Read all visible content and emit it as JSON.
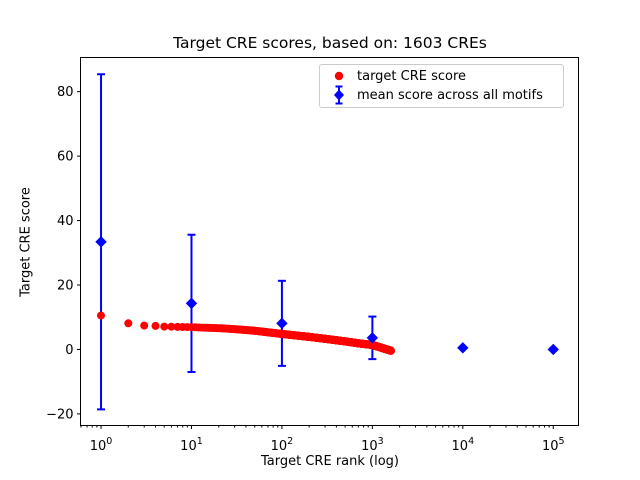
{
  "title": "Target CRE scores, based on: 1603 CREs",
  "axes": {
    "xlabel": "Target CRE rank (log)",
    "ylabel": "Target CRE score",
    "x_tick_base": "10",
    "x_tick_exponents": [
      "0",
      "1",
      "2",
      "3",
      "4",
      "5"
    ],
    "y_tick_labels": [
      "−20",
      "0",
      "20",
      "40",
      "60",
      "80"
    ]
  },
  "legend": {
    "items": [
      {
        "label": "target CRE score",
        "marker": "circle",
        "color": "#ff0000"
      },
      {
        "label": "mean score across all motifs",
        "marker": "diamond-errorbar",
        "color": "#0000ff"
      }
    ]
  },
  "chart_data": {
    "type": "scatter",
    "title": "Target CRE scores, based on: 1603 CREs",
    "xlabel": "Target CRE rank (log)",
    "ylabel": "Target CRE score",
    "x_scale": "log",
    "xlim_log": [
      -0.227,
      5.279
    ],
    "ylim": [
      -23.6,
      90.6
    ],
    "x_major_ticks": [
      1,
      10,
      100,
      1000,
      10000,
      100000
    ],
    "y_ticks": [
      -20,
      0,
      20,
      40,
      60,
      80
    ],
    "grid": false,
    "legend_position": "upper right",
    "series": [
      {
        "name": "target CRE score",
        "marker": "circle",
        "color": "#ff0000",
        "n_points": 1603,
        "interpolation": "linear in log10(rank) between anchors",
        "anchors_rank_score": [
          [
            1,
            10.5
          ],
          [
            2,
            8.1
          ],
          [
            3,
            7.4
          ],
          [
            4,
            7.3
          ],
          [
            5,
            7.1
          ],
          [
            7,
            7.0
          ],
          [
            10,
            6.9
          ],
          [
            20,
            6.6
          ],
          [
            30,
            6.3
          ],
          [
            50,
            5.8
          ],
          [
            100,
            4.8
          ],
          [
            200,
            3.9
          ],
          [
            300,
            3.3
          ],
          [
            500,
            2.5
          ],
          [
            700,
            1.9
          ],
          [
            1000,
            1.4
          ],
          [
            1300,
            0.4
          ],
          [
            1603,
            -0.4
          ]
        ]
      },
      {
        "name": "mean score across all motifs",
        "marker": "diamond",
        "color": "#0000ff",
        "x": [
          1,
          10,
          100,
          1000,
          10000,
          100000
        ],
        "y": [
          33.4,
          14.3,
          8.1,
          3.6,
          0.5,
          0.0
        ],
        "yerr": [
          52.0,
          21.3,
          13.2,
          6.6,
          0,
          0
        ]
      }
    ]
  }
}
